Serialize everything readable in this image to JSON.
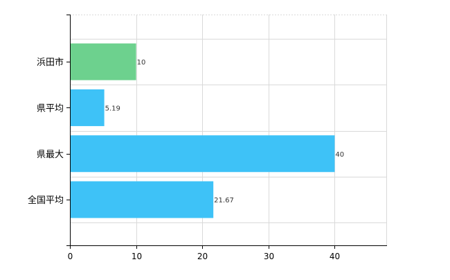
{
  "chart_data": {
    "type": "bar",
    "orientation": "horizontal",
    "categories": [
      "浜田市",
      "県平均",
      "県最大",
      "全国平均"
    ],
    "values": [
      10,
      5.19,
      40,
      21.67
    ],
    "data_labels": [
      "10",
      "5.19",
      "40",
      "21.67"
    ],
    "bar_colors": [
      "#6dd18e",
      "#3ec2f7",
      "#3ec2f7",
      "#3ec2f7"
    ],
    "xlim": [
      0,
      47.8
    ],
    "x_ticks": [
      0,
      10,
      20,
      30,
      40
    ],
    "x_tick_labels": [
      "0",
      "10",
      "20",
      "30",
      "40"
    ],
    "grid": true,
    "title": "",
    "xlabel": "",
    "ylabel": ""
  },
  "colors": {
    "grid": "#d9d9d9",
    "axis": "#000000",
    "highlight_bar": "#6dd18e",
    "bar": "#3ec2f7"
  }
}
